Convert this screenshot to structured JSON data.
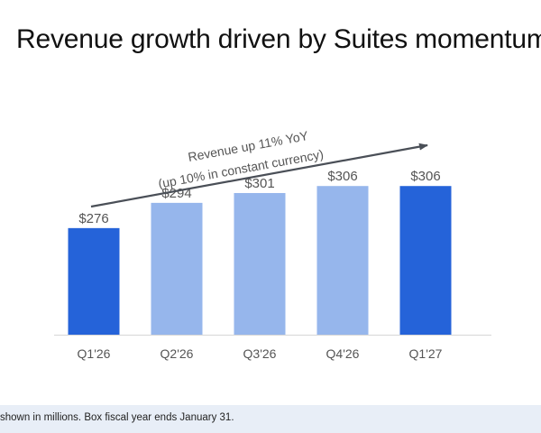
{
  "title": "Revenue growth driven by Suites momentum",
  "footnote": "shown in millions. Box fiscal year ends January 31.",
  "colors": {
    "highlight_bar": "#2563d9",
    "normal_bar": "#96b6ec",
    "axis": "#d6d6d6",
    "arrow": "#4a4f57",
    "label": "#555555",
    "footer_bg": "#e8eef7"
  },
  "chart_data": {
    "type": "bar",
    "categories": [
      "Q1'26",
      "Q2'26",
      "Q3'26",
      "Q4'26",
      "Q1'27"
    ],
    "values": [
      276,
      294,
      301,
      306,
      306
    ],
    "data_labels": [
      "$276",
      "$294",
      "$301",
      "$306",
      "$306"
    ],
    "highlighted": [
      true,
      false,
      false,
      false,
      true
    ],
    "ylim": [
      200,
      310
    ],
    "annotation": {
      "line1": "Revenue up 11% YoY",
      "line2": "(up 10% in constant currency)"
    },
    "grid": false,
    "legend": "none"
  }
}
